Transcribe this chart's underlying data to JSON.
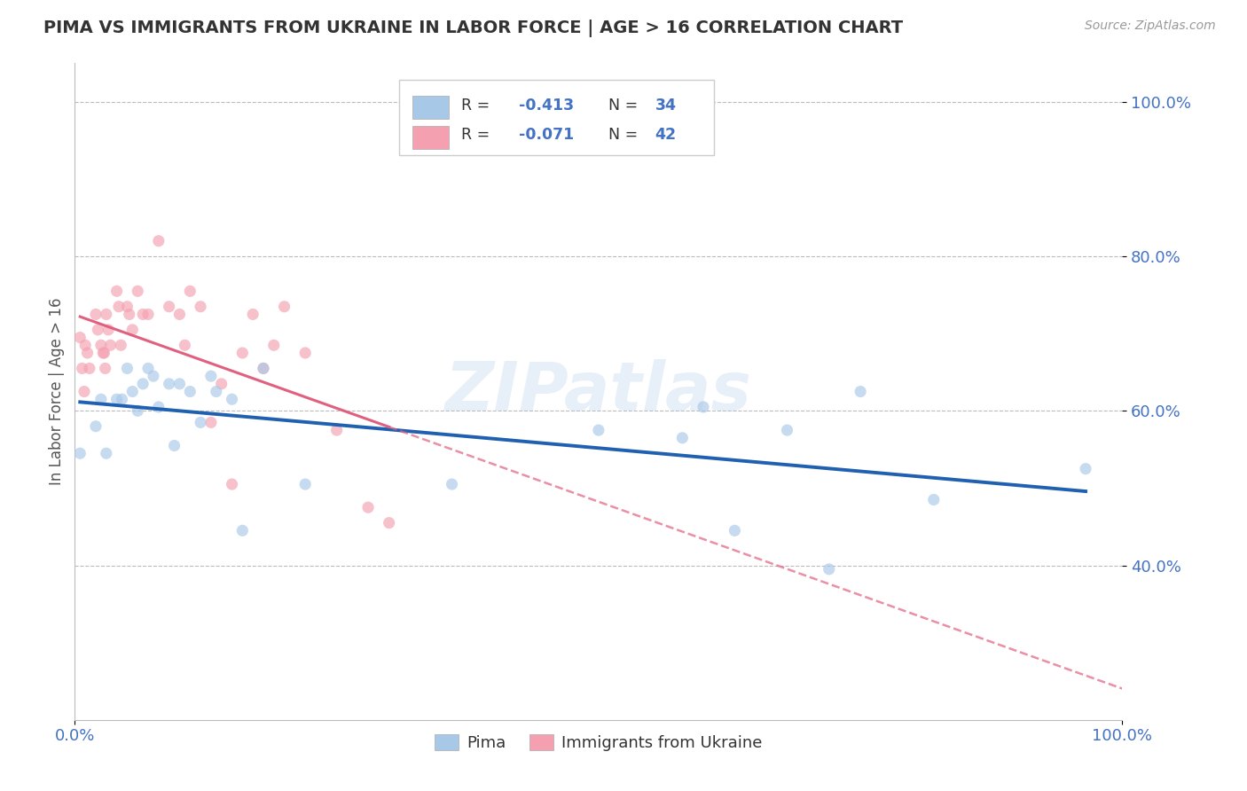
{
  "title": "PIMA VS IMMIGRANTS FROM UKRAINE IN LABOR FORCE | AGE > 16 CORRELATION CHART",
  "source_text": "Source: ZipAtlas.com",
  "ylabel": "In Labor Force | Age > 16",
  "xlim": [
    0.0,
    1.0
  ],
  "ylim": [
    0.2,
    1.05
  ],
  "y_tick_labels": [
    "40.0%",
    "60.0%",
    "80.0%",
    "100.0%"
  ],
  "y_tick_positions": [
    0.4,
    0.6,
    0.8,
    1.0
  ],
  "watermark": "ZIPatlas",
  "blue_color": "#a8c8e8",
  "pink_color": "#f4a0b0",
  "blue_line_color": "#2060b0",
  "pink_line_color": "#e06080",
  "background_color": "#ffffff",
  "grid_color": "#bbbbbb",
  "title_color": "#333333",
  "axis_label_color": "#4472c4",
  "pima_x": [
    0.005,
    0.02,
    0.025,
    0.03,
    0.04,
    0.045,
    0.05,
    0.055,
    0.06,
    0.065,
    0.07,
    0.075,
    0.08,
    0.09,
    0.095,
    0.1,
    0.11,
    0.12,
    0.13,
    0.135,
    0.15,
    0.16,
    0.18,
    0.22,
    0.36,
    0.5,
    0.58,
    0.6,
    0.63,
    0.68,
    0.72,
    0.75,
    0.82,
    0.965
  ],
  "pima_y": [
    0.545,
    0.58,
    0.615,
    0.545,
    0.615,
    0.615,
    0.655,
    0.625,
    0.6,
    0.635,
    0.655,
    0.645,
    0.605,
    0.635,
    0.555,
    0.635,
    0.625,
    0.585,
    0.645,
    0.625,
    0.615,
    0.445,
    0.655,
    0.505,
    0.505,
    0.575,
    0.565,
    0.605,
    0.445,
    0.575,
    0.395,
    0.625,
    0.485,
    0.525
  ],
  "ukraine_x": [
    0.005,
    0.007,
    0.009,
    0.01,
    0.012,
    0.014,
    0.02,
    0.022,
    0.025,
    0.027,
    0.028,
    0.029,
    0.03,
    0.032,
    0.034,
    0.04,
    0.042,
    0.044,
    0.05,
    0.052,
    0.055,
    0.06,
    0.065,
    0.07,
    0.08,
    0.09,
    0.1,
    0.105,
    0.11,
    0.12,
    0.13,
    0.14,
    0.15,
    0.16,
    0.17,
    0.18,
    0.19,
    0.2,
    0.22,
    0.25,
    0.28,
    0.3
  ],
  "ukraine_y": [
    0.695,
    0.655,
    0.625,
    0.685,
    0.675,
    0.655,
    0.725,
    0.705,
    0.685,
    0.675,
    0.675,
    0.655,
    0.725,
    0.705,
    0.685,
    0.755,
    0.735,
    0.685,
    0.735,
    0.725,
    0.705,
    0.755,
    0.725,
    0.725,
    0.82,
    0.735,
    0.725,
    0.685,
    0.755,
    0.735,
    0.585,
    0.635,
    0.505,
    0.675,
    0.725,
    0.655,
    0.685,
    0.735,
    0.675,
    0.575,
    0.475,
    0.455
  ],
  "dot_size": 90,
  "dot_alpha": 0.65
}
